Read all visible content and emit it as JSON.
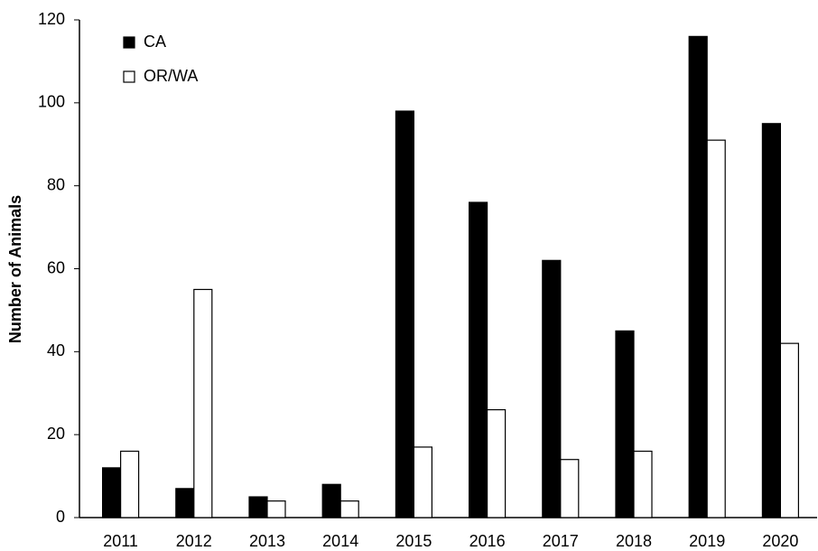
{
  "chart_data": {
    "type": "bar",
    "ylabel": "Number of Animals",
    "categories": [
      "2011",
      "2012",
      "2013",
      "2014",
      "2015",
      "2016",
      "2017",
      "2018",
      "2019",
      "2020"
    ],
    "series": [
      {
        "name": "CA",
        "color": "#000000",
        "values": [
          12,
          7,
          5,
          8,
          98,
          76,
          62,
          45,
          116,
          95
        ]
      },
      {
        "name": "OR/WA",
        "color": "#ffffff",
        "values": [
          16,
          55,
          4,
          4,
          17,
          26,
          14,
          16,
          91,
          42
        ]
      }
    ],
    "ylim": [
      0,
      120
    ],
    "yticks": [
      0,
      20,
      40,
      60,
      80,
      100,
      120
    ],
    "grid": false,
    "legend": "upper-left"
  }
}
